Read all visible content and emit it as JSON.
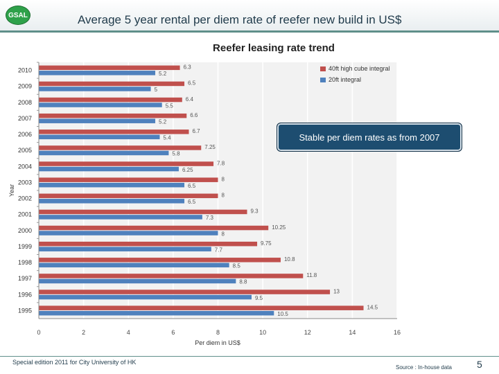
{
  "header": {
    "logo_text": "GSAL",
    "title": "Average 5 year rental per diem rate of reefer new build in US$"
  },
  "callout": {
    "text": "Stable per diem rates as from 2007"
  },
  "footer": {
    "edition": "Special edition 2011 for City University of HK",
    "source": "Source : In-house data",
    "page_number": "5"
  },
  "colors": {
    "series_40ft": "#c0504d",
    "series_20ft": "#4f81bd",
    "accent": "#5f8f8a"
  },
  "chart_data": {
    "type": "bar",
    "orientation": "horizontal",
    "title": "Reefer leasing rate trend",
    "xlabel": "Per diem in US$",
    "ylabel": "Year",
    "xlim": [
      0,
      16
    ],
    "xticks": [
      0,
      2,
      4,
      6,
      8,
      10,
      12,
      14,
      16
    ],
    "grid": true,
    "legend_position": "top-right",
    "categories": [
      "2010",
      "2009",
      "2008",
      "2007",
      "2006",
      "2005",
      "2004",
      "2003",
      "2002",
      "2001",
      "2000",
      "1999",
      "1998",
      "1997",
      "1996",
      "1995"
    ],
    "series": [
      {
        "name": "40ft high cube integral",
        "color": "#c0504d",
        "values": [
          6.3,
          6.5,
          6.4,
          6.6,
          6.7,
          7.25,
          7.8,
          8,
          8,
          9.3,
          10.25,
          9.75,
          10.8,
          11.8,
          13,
          14.5
        ],
        "labels": [
          "6.3",
          "6.5",
          "6.4",
          "6.6",
          "6.7",
          "7.25",
          "7.8",
          "8",
          "8",
          "9.3",
          "10.25",
          "9.75",
          "10.8",
          "11.8",
          "13",
          "14.5"
        ]
      },
      {
        "name": "20ft integral",
        "color": "#4f81bd",
        "values": [
          5.2,
          5,
          5.5,
          5.2,
          5.4,
          5.8,
          6.25,
          6.5,
          6.5,
          7.3,
          8,
          7.7,
          8.5,
          8.8,
          9.5,
          10.5
        ],
        "labels": [
          "5.2",
          "5",
          "5.5",
          "5.2",
          "5.4",
          "5.8",
          "6.25",
          "6.5",
          "6.5",
          "7.3",
          "8",
          "7.7",
          "8.5",
          "8.8",
          "9.5",
          "10.5"
        ]
      }
    ]
  }
}
